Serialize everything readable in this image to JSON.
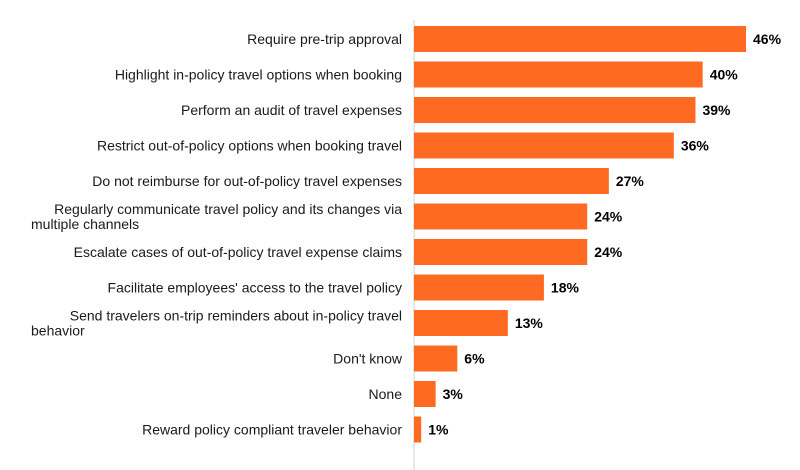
{
  "chart_data": {
    "type": "bar",
    "orientation": "horizontal",
    "title": "",
    "xlabel": "",
    "ylabel": "",
    "categories": [
      [
        "Require pre-trip approval"
      ],
      [
        "Highlight in-policy travel options when booking"
      ],
      [
        "Perform an audit of travel expenses"
      ],
      [
        "Restrict out-of-policy options when booking travel"
      ],
      [
        "Do not reimburse for out-of-policy travel expenses"
      ],
      [
        "Regularly communicate travel policy and its changes via",
        "multiple channels"
      ],
      [
        "Escalate cases of out-of-policy travel expense claims"
      ],
      [
        "Facilitate employees' access to the travel policy"
      ],
      [
        "Send travelers on-trip reminders about in-policy travel",
        "behavior"
      ],
      [
        "Don't know"
      ],
      [
        "None"
      ],
      [
        "Reward policy compliant traveler behavior"
      ]
    ],
    "values": [
      46,
      40,
      39,
      36,
      27,
      24,
      24,
      18,
      13,
      6,
      3,
      1
    ],
    "value_labels": [
      "46%",
      "40%",
      "39%",
      "36%",
      "27%",
      "24%",
      "24%",
      "18%",
      "13%",
      "6%",
      "3%",
      "1%"
    ],
    "unit": "%",
    "xlim": [
      0,
      46
    ],
    "grid": false,
    "legend": "none",
    "colors": {
      "bar": "#FF6A22",
      "axis": "#d0d0d0",
      "label_text": "#1a1a1a",
      "value_text": "#000000"
    }
  }
}
